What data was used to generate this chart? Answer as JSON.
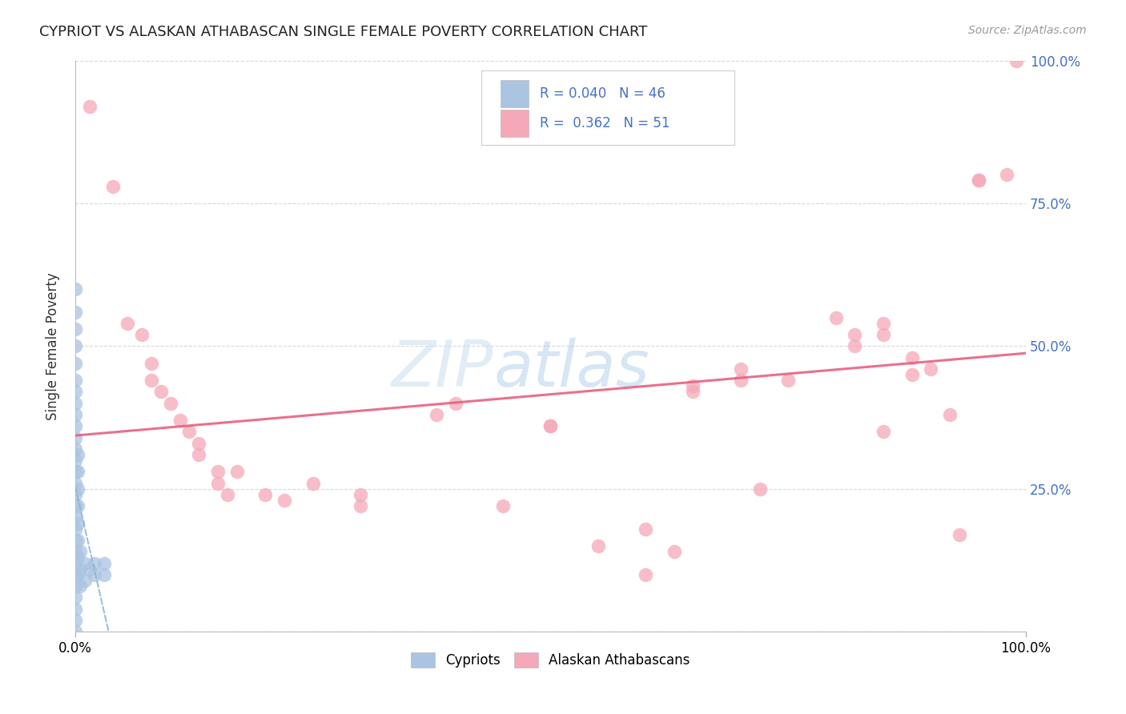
{
  "title": "CYPRIOT VS ALASKAN ATHABASCAN SINGLE FEMALE POVERTY CORRELATION CHART",
  "source": "Source: ZipAtlas.com",
  "ylabel": "Single Female Poverty",
  "cypriot_color": "#aac4e2",
  "athabascan_color": "#f5a8b8",
  "trend_cypriot_color": "#8ab4d8",
  "trend_athabascan_color": "#e86080",
  "watermark_zip": "ZIP",
  "watermark_atlas": "atlas",
  "background_color": "#ffffff",
  "grid_color": "#d8d8d8",
  "right_axis_color": "#4472c4",
  "cypriot_points": [
    [
      0.0,
      0.6
    ],
    [
      0.0,
      0.56
    ],
    [
      0.0,
      0.53
    ],
    [
      0.0,
      0.5
    ],
    [
      0.0,
      0.47
    ],
    [
      0.0,
      0.44
    ],
    [
      0.0,
      0.42
    ],
    [
      0.0,
      0.4
    ],
    [
      0.0,
      0.38
    ],
    [
      0.0,
      0.36
    ],
    [
      0.0,
      0.34
    ],
    [
      0.0,
      0.32
    ],
    [
      0.0,
      0.3
    ],
    [
      0.0,
      0.28
    ],
    [
      0.0,
      0.26
    ],
    [
      0.0,
      0.24
    ],
    [
      0.0,
      0.22
    ],
    [
      0.0,
      0.2
    ],
    [
      0.0,
      0.18
    ],
    [
      0.0,
      0.16
    ],
    [
      0.0,
      0.14
    ],
    [
      0.0,
      0.12
    ],
    [
      0.0,
      0.1
    ],
    [
      0.0,
      0.08
    ],
    [
      0.0,
      0.06
    ],
    [
      0.0,
      0.04
    ],
    [
      0.0,
      0.02
    ],
    [
      0.0,
      0.0
    ],
    [
      0.003,
      0.31
    ],
    [
      0.003,
      0.28
    ],
    [
      0.003,
      0.25
    ],
    [
      0.003,
      0.22
    ],
    [
      0.003,
      0.19
    ],
    [
      0.003,
      0.16
    ],
    [
      0.003,
      0.13
    ],
    [
      0.003,
      0.1
    ],
    [
      0.005,
      0.14
    ],
    [
      0.005,
      0.11
    ],
    [
      0.005,
      0.08
    ],
    [
      0.01,
      0.12
    ],
    [
      0.01,
      0.09
    ],
    [
      0.015,
      0.11
    ],
    [
      0.02,
      0.1
    ],
    [
      0.02,
      0.12
    ],
    [
      0.03,
      0.12
    ],
    [
      0.03,
      0.1
    ]
  ],
  "athabascan_points": [
    [
      0.015,
      0.92
    ],
    [
      0.04,
      0.78
    ],
    [
      0.055,
      0.54
    ],
    [
      0.07,
      0.52
    ],
    [
      0.08,
      0.47
    ],
    [
      0.08,
      0.44
    ],
    [
      0.09,
      0.42
    ],
    [
      0.1,
      0.4
    ],
    [
      0.11,
      0.37
    ],
    [
      0.12,
      0.35
    ],
    [
      0.13,
      0.33
    ],
    [
      0.13,
      0.31
    ],
    [
      0.15,
      0.28
    ],
    [
      0.15,
      0.26
    ],
    [
      0.16,
      0.24
    ],
    [
      0.17,
      0.28
    ],
    [
      0.2,
      0.24
    ],
    [
      0.22,
      0.23
    ],
    [
      0.25,
      0.26
    ],
    [
      0.3,
      0.24
    ],
    [
      0.3,
      0.22
    ],
    [
      0.38,
      0.38
    ],
    [
      0.4,
      0.4
    ],
    [
      0.45,
      0.22
    ],
    [
      0.5,
      0.36
    ],
    [
      0.55,
      0.15
    ],
    [
      0.6,
      0.18
    ],
    [
      0.63,
      0.14
    ],
    [
      0.65,
      0.43
    ],
    [
      0.65,
      0.42
    ],
    [
      0.7,
      0.46
    ],
    [
      0.7,
      0.44
    ],
    [
      0.75,
      0.44
    ],
    [
      0.8,
      0.55
    ],
    [
      0.82,
      0.52
    ],
    [
      0.82,
      0.5
    ],
    [
      0.85,
      0.54
    ],
    [
      0.85,
      0.52
    ],
    [
      0.88,
      0.48
    ],
    [
      0.88,
      0.45
    ],
    [
      0.9,
      0.46
    ],
    [
      0.92,
      0.38
    ],
    [
      0.93,
      0.17
    ],
    [
      0.95,
      0.79
    ],
    [
      0.95,
      0.79
    ],
    [
      0.98,
      0.8
    ],
    [
      0.99,
      1.0
    ],
    [
      0.6,
      0.1
    ],
    [
      0.72,
      0.25
    ],
    [
      0.85,
      0.35
    ],
    [
      0.5,
      0.36
    ]
  ],
  "xlim": [
    0,
    1
  ],
  "ylim": [
    0,
    1
  ]
}
